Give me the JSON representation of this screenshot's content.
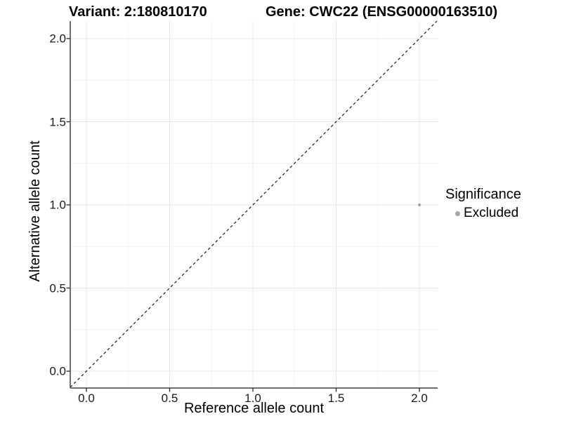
{
  "chart_data": {
    "type": "scatter",
    "title_variant": "Variant: 2:180810170",
    "title_gene": "Gene: CWC22 (ENSG00000163510)",
    "xlabel": "Reference allele count",
    "ylabel": "Alternative allele count",
    "xlim": [
      -0.1,
      2.1
    ],
    "ylim": [
      -0.1,
      2.1
    ],
    "x_ticks": [
      {
        "v": 0.0,
        "label": "0.0"
      },
      {
        "v": 0.5,
        "label": "0.5"
      },
      {
        "v": 1.0,
        "label": "1.0"
      },
      {
        "v": 1.5,
        "label": "1.5"
      },
      {
        "v": 2.0,
        "label": "2.0"
      }
    ],
    "y_ticks": [
      {
        "v": 0.0,
        "label": "0.0"
      },
      {
        "v": 0.5,
        "label": "0.5"
      },
      {
        "v": 1.0,
        "label": "1.0"
      },
      {
        "v": 1.5,
        "label": "1.5"
      },
      {
        "v": 2.0,
        "label": "2.0"
      }
    ],
    "grid": {
      "show": true,
      "minor_positions": [
        0.25,
        0.75,
        1.25,
        1.75
      ],
      "major_color": "#e4e4e4",
      "minor_color": "#f2f2f2"
    },
    "reference_line": {
      "slope": 1,
      "intercept": 0,
      "style": "dashed",
      "color": "#1a1a1a"
    },
    "points": [
      {
        "x": 2.0,
        "y": 1.0,
        "series": "Excluded",
        "color": "#a6a6a6",
        "r": 2
      }
    ],
    "legend": {
      "title": "Significance",
      "position": "right",
      "entries": [
        {
          "label": "Excluded",
          "color": "#a6a6a6"
        }
      ]
    },
    "axis_color": "#404040",
    "tick_color": "#333333"
  }
}
